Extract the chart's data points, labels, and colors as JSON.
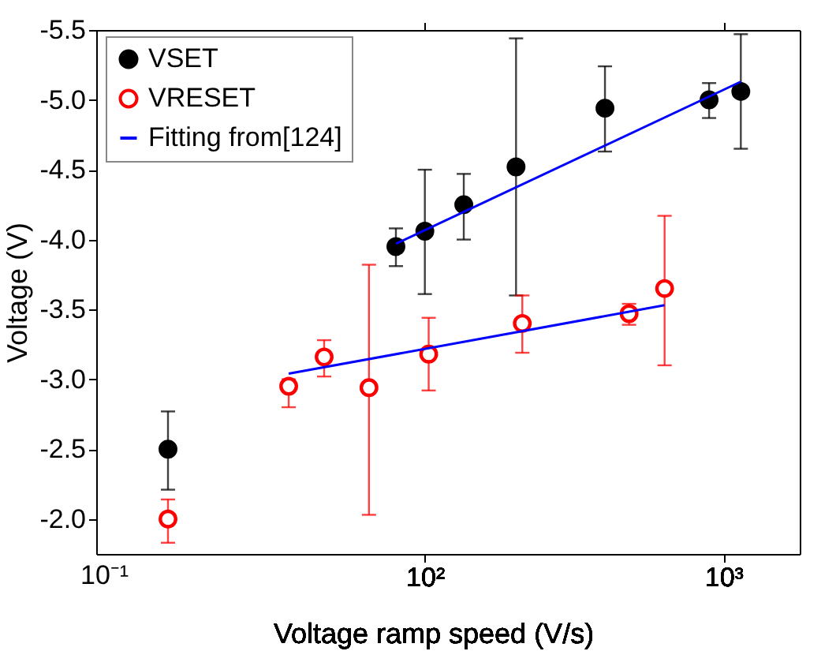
{
  "chart_data": [
    {
      "type": "scatter",
      "ylabel": "Voltage (V)",
      "marker": "circle",
      "categories": [
        null
      ],
      "annotations": [
        "10⁻¹"
      ],
      "ylim": [
        -1.75,
        -5.5
      ],
      "yticks": [
        -5.5,
        {
          "value": -5,
          "label": "-5.0"
        },
        -4.5,
        {
          "value": -4,
          "label": "-4.0"
        },
        -3.5,
        {
          "value": -3,
          "label": "-3.0"
        },
        -2.5,
        {
          "value": -2,
          "label": "-2.0"
        }
      ],
      "series": [
        {
          "color": "#000000",
          "values": [
            -2.5
          ],
          "errors": [
            [
              -2.77,
              -2.21
            ]
          ]
        },
        {
          "color": "#ff0000",
          "values": [
            -2.0
          ],
          "errors": [
            [
              -2.14,
              -1.83
            ]
          ]
        }
      ]
    },
    {
      "type": "scatter",
      "xlabel": "Voltage ramp speed (V/s)",
      "log": "x",
      "legend": "top left",
      "tick_labels": "x",
      "xlim": [
        24,
        1800
      ],
      "xticks": [
        {
          "value": 100,
          "label": "10²"
        },
        {
          "value": 1000,
          "label": "10³"
        }
      ],
      "ylim": [
        -1.75,
        -5.5
      ],
      "series": [
        {
          "name": "VSET",
          "color": "#000000",
          "marker": "circle",
          "x": [
            80,
            100,
            135,
            202,
            401,
            895,
            1143
          ],
          "values": [
            -3.95,
            -4.06,
            -4.25,
            -4.52,
            -4.94,
            -5.0,
            -5.06
          ],
          "errors": [
            [
              -4.08,
              -3.81
            ],
            [
              -4.5,
              -3.61
            ],
            [
              -4.47,
              -4.0
            ],
            [
              -5.44,
              -3.6
            ],
            [
              -5.24,
              -4.63
            ],
            [
              -5.12,
              -4.87
            ],
            [
              -5.47,
              -4.65
            ]
          ]
        },
        {
          "name": "VRESET",
          "color": "#ff0000",
          "marker": "circle",
          "x": [
            35,
            46,
            65,
            103,
            212,
            483,
            635
          ],
          "values": [
            -2.95,
            -3.16,
            -2.94,
            -3.18,
            -3.4,
            -3.47,
            -3.65
          ],
          "errors": [
            [
              -3.0,
              -2.8
            ],
            [
              -3.28,
              -3.02
            ],
            [
              -3.82,
              -2.03
            ],
            [
              -3.44,
              -2.92
            ],
            [
              -3.6,
              -3.19
            ],
            [
              -3.54,
              -3.39
            ],
            [
              -4.17,
              -3.1
            ]
          ]
        },
        {
          "name": "Fitting from[124]",
          "type": "line",
          "color": "#0000ff",
          "marker": "none",
          "line_style": "solid",
          "x": [
            80,
            1143
          ],
          "values": [
            -3.97,
            -5.13
          ]
        },
        {
          "type": "line",
          "color": "#0000ff",
          "marker": "none",
          "line_style": "solid",
          "x": [
            35,
            635
          ],
          "values": [
            -3.04,
            -3.53
          ]
        }
      ]
    }
  ]
}
